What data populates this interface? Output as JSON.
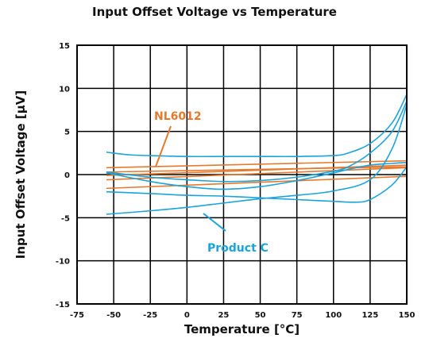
{
  "chart_data": {
    "type": "line",
    "title": "Input Offset Voltage vs Temperature",
    "xlabel": "Temperature [°C]",
    "ylabel": "Input Offset Voltage [μV]",
    "xlim": [
      -75,
      150
    ],
    "ylim": [
      -15,
      15
    ],
    "xticks": [
      -75,
      -50,
      -25,
      0,
      25,
      50,
      75,
      100,
      125,
      150
    ],
    "yticks": [
      -15,
      -10,
      -5,
      0,
      5,
      10,
      15
    ],
    "grid": true,
    "annotations": [
      {
        "text": "NL6012",
        "color": "#E57A2E"
      },
      {
        "text": "Product C",
        "color": "#1BA3DC"
      }
    ],
    "series": [
      {
        "group": "NL6012",
        "color": "#E57A2E",
        "x": [
          -55,
          150
        ],
        "y": [
          0.8,
          1.6
        ]
      },
      {
        "group": "NL6012",
        "color": "#E57A2E",
        "x": [
          -55,
          150
        ],
        "y": [
          0.3,
          0.9
        ]
      },
      {
        "group": "NL6012",
        "color": "#E57A2E",
        "x": [
          -55,
          150
        ],
        "y": [
          -0.1,
          1.1
        ]
      },
      {
        "group": "NL6012",
        "color": "#E57A2E",
        "x": [
          -55,
          150
        ],
        "y": [
          -0.6,
          0.8
        ]
      },
      {
        "group": "NL6012",
        "color": "#E57A2E",
        "x": [
          -55,
          150
        ],
        "y": [
          -1.6,
          -0.2
        ]
      },
      {
        "group": "Product C",
        "color": "#1BA3DC",
        "x": [
          -55,
          -40,
          -25,
          0,
          25,
          50,
          75,
          100,
          110,
          125,
          140,
          150
        ],
        "y": [
          2.6,
          2.3,
          2.2,
          2.1,
          2.1,
          2.1,
          2.1,
          2.2,
          2.5,
          3.6,
          6.0,
          9.3
        ]
      },
      {
        "group": "Product C",
        "color": "#1BA3DC",
        "x": [
          -55,
          -25,
          0,
          25,
          50,
          75,
          100,
          110,
          125,
          140,
          150
        ],
        "y": [
          0.3,
          -0.3,
          -0.6,
          -0.8,
          -0.7,
          -0.3,
          0.4,
          0.9,
          2.5,
          5.0,
          8.5
        ]
      },
      {
        "group": "Product C",
        "color": "#1BA3DC",
        "x": [
          -55,
          -25,
          0,
          25,
          50,
          75,
          100,
          125,
          140,
          150
        ],
        "y": [
          -4.6,
          -4.2,
          -3.8,
          -3.3,
          -2.8,
          -2.4,
          -1.9,
          -0.6,
          3.0,
          8.1
        ]
      },
      {
        "group": "Product C",
        "color": "#1BA3DC",
        "x": [
          -55,
          -25,
          0,
          25,
          50,
          75,
          100,
          115,
          125,
          140,
          150
        ],
        "y": [
          -2.0,
          -2.2,
          -2.4,
          -2.5,
          -2.7,
          -2.9,
          -3.1,
          -3.2,
          -2.9,
          -1.2,
          0.9
        ]
      },
      {
        "group": "Product C",
        "color": "#1BA3DC",
        "x": [
          -55,
          -25,
          0,
          25,
          50,
          75,
          100,
          110,
          125,
          140,
          150
        ],
        "y": [
          0.2,
          -0.8,
          -1.4,
          -1.7,
          -1.4,
          -0.7,
          0.2,
          0.6,
          1.1,
          1.3,
          1.4
        ]
      }
    ]
  }
}
